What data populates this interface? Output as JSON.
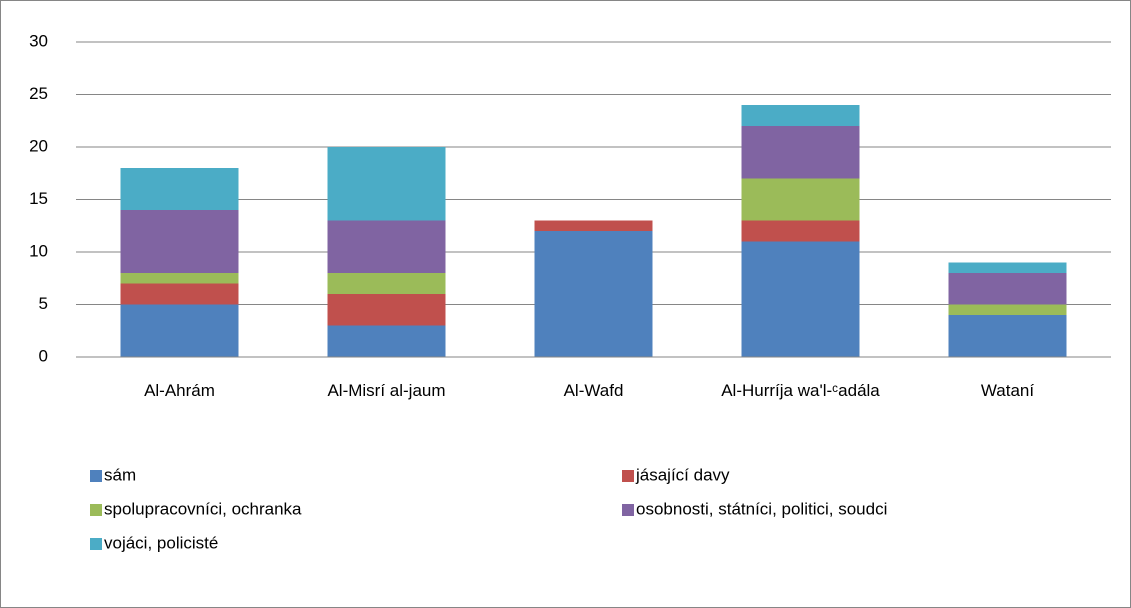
{
  "chart_data": {
    "type": "bar",
    "stacked": true,
    "categories": [
      "Al-Ahrám",
      "Al-Misrí al-jaum",
      "Al-Wafd",
      "Al-Hurríja wa'l-ᶜadála",
      "Wataní"
    ],
    "series": [
      {
        "name": "sám",
        "color": "#4f81bd",
        "values": [
          5,
          3,
          12,
          11,
          4
        ]
      },
      {
        "name": "jásající davy",
        "color": "#c0504d",
        "values": [
          2,
          3,
          1,
          2,
          0
        ]
      },
      {
        "name": "spolupracovníci, ochranka",
        "color": "#9bbb59",
        "values": [
          1,
          2,
          0,
          4,
          1
        ]
      },
      {
        "name": "osobnosti, státníci, politici, soudci",
        "color": "#8064a2",
        "values": [
          6,
          5,
          0,
          5,
          3
        ]
      },
      {
        "name": "vojáci, policisté",
        "color": "#4bacc6",
        "values": [
          4,
          7,
          0,
          2,
          1
        ]
      }
    ],
    "ylim": [
      0,
      30
    ],
    "yticks": [
      0,
      5,
      10,
      15,
      20,
      25,
      30
    ],
    "grid": true,
    "legend": "bottom"
  }
}
